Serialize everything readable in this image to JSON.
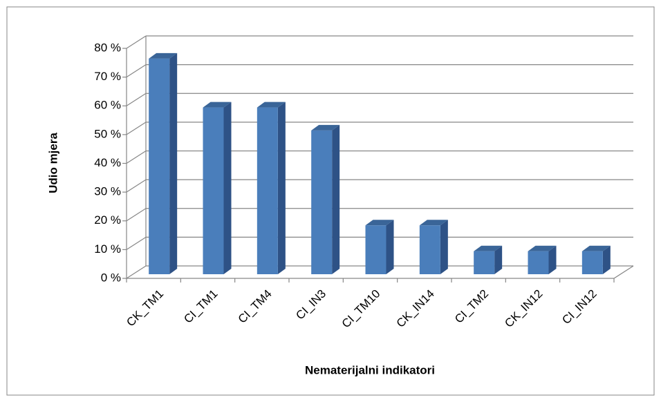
{
  "chart_data": {
    "type": "bar3d",
    "x_label": "Nematerijalni indikatori",
    "y_label": "Udio mjera",
    "categories": [
      "CK_TM1",
      "CI_TM1",
      "CI_TM4",
      "CI_IN3",
      "CI_TM10",
      "CK_IN14",
      "CI_TM2",
      "CK_IN12",
      "CI_IN12"
    ],
    "values": [
      75,
      58,
      58,
      50,
      17,
      17,
      8,
      8,
      8
    ],
    "color": "#4a7ebb",
    "ylim": [
      0,
      80
    ],
    "yticks": [
      {
        "value": 0,
        "label": "0 %"
      },
      {
        "value": 10,
        "label": "10 %"
      },
      {
        "value": 20,
        "label": "20 %"
      },
      {
        "value": 30,
        "label": "30 %"
      },
      {
        "value": 40,
        "label": "40 %"
      },
      {
        "value": 50,
        "label": "50 %"
      },
      {
        "value": 60,
        "label": "60 %"
      },
      {
        "value": 70,
        "label": "70 %"
      },
      {
        "value": 80,
        "label": "80 %"
      }
    ],
    "grid": true
  }
}
